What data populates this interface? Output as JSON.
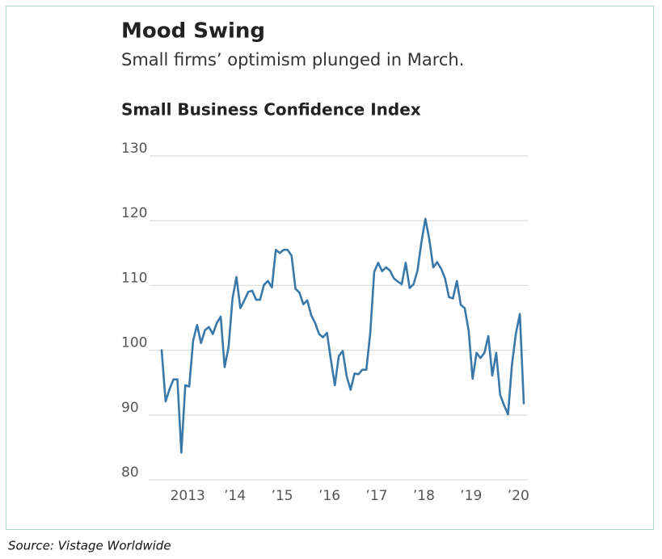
{
  "chart_data": {
    "type": "line",
    "title": "Mood Swing",
    "subtitle": "Small firms’ optimism plunged in March.",
    "chart_title": "Small Business Confidence Index",
    "source": "Source: Vistage Worldwide",
    "color": "#3a78aa",
    "grid": true,
    "ylim": [
      80,
      130
    ],
    "yticks": [
      80,
      90,
      100,
      110,
      120,
      130
    ],
    "categories": [
      null,
      null,
      null,
      null,
      null,
      null,
      "2013",
      null,
      null,
      null,
      null,
      null,
      null,
      null,
      null,
      null,
      null,
      null,
      "’14",
      null,
      null,
      null,
      null,
      null,
      null,
      null,
      null,
      null,
      null,
      null,
      "’15",
      null,
      null,
      null,
      null,
      null,
      null,
      null,
      null,
      null,
      null,
      null,
      "’16",
      null,
      null,
      null,
      null,
      null,
      null,
      null,
      null,
      null,
      null,
      null,
      "’17",
      null,
      null,
      null,
      null,
      null,
      null,
      null,
      null,
      null,
      null,
      null,
      "’18",
      null,
      null,
      null,
      null,
      null,
      null,
      null,
      null,
      null,
      null,
      null,
      "’19",
      null,
      null,
      null,
      null,
      null,
      null,
      null,
      null,
      null,
      null,
      null,
      "’20",
      null,
      null
    ],
    "values": [
      100,
      92.1,
      94,
      95.5,
      95.5,
      84.2,
      94.6,
      94.4,
      101.5,
      103.9,
      101.1,
      103.1,
      103.6,
      102.5,
      104.2,
      105.2,
      97.4,
      100.5,
      108,
      111.3,
      106.5,
      107.7,
      109,
      109.2,
      107.8,
      107.8,
      110.1,
      110.7,
      109.7,
      115.5,
      115,
      115.5,
      115.5,
      114.6,
      109.5,
      108.9,
      107.1,
      107.7,
      105.4,
      104.2,
      102.5,
      102,
      102.7,
      98.5,
      94.6,
      99.1,
      99.9,
      96,
      93.9,
      96.4,
      96.3,
      97,
      97,
      102.7,
      112.1,
      113.5,
      112.2,
      112.8,
      112.3,
      111.1,
      110.6,
      110.2,
      113.5,
      109.6,
      110.2,
      112.3,
      116.7,
      120.3,
      117.1,
      112.8,
      113.6,
      112.6,
      111.1,
      108.2,
      108,
      110.7,
      107,
      106.5,
      103,
      95.6,
      99.6,
      98.8,
      99.6,
      102.2,
      96.1,
      99.6,
      93.1,
      91.5,
      90.1,
      97.8,
      102.6,
      105.6,
      91.8
    ]
  }
}
